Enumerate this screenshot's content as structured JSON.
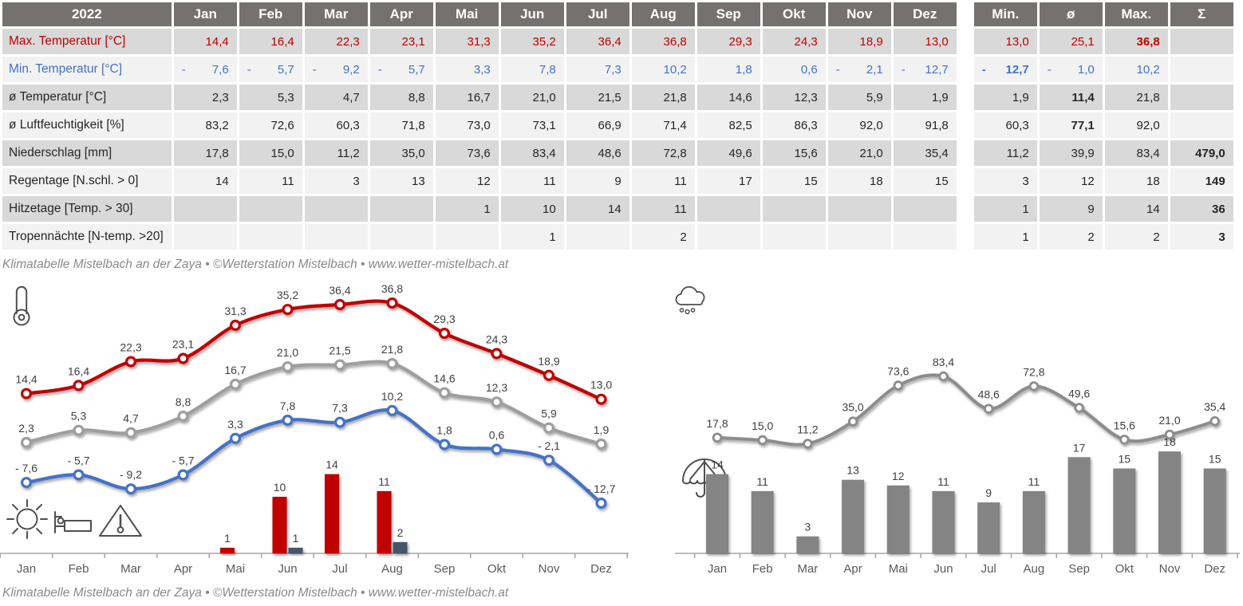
{
  "colors": {
    "header_bg": "#767171",
    "row_dark": "#d9d9d9",
    "row_light": "#f2f2f2",
    "max_red": "#C00000",
    "min_blue": "#4472C4",
    "avg_gray": "#9E9E9E",
    "precip_gray": "#8C8C8C",
    "bar_gray": "#848484",
    "tropen_slate": "#44546A",
    "axis": "#A6A6A6",
    "point_label": "#404040",
    "month_label": "#595959",
    "caption_gray": "#8a8a8a"
  },
  "table": {
    "year": "2022",
    "months": [
      "Jan",
      "Feb",
      "Mar",
      "Apr",
      "Mai",
      "Jun",
      "Jul",
      "Aug",
      "Sep",
      "Okt",
      "Nov",
      "Dez"
    ],
    "summary_headers": [
      "Min.",
      "ø",
      "Max.",
      "Σ"
    ],
    "rows": [
      {
        "label": "Max. Temperatur [°C]",
        "color": "#C00000",
        "values": [
          "14,4",
          "16,4",
          "22,3",
          "23,1",
          "31,3",
          "35,2",
          "36,4",
          "36,8",
          "29,3",
          "24,3",
          "18,9",
          "13,0"
        ],
        "summary": [
          "13,0",
          "25,1",
          "36,8",
          ""
        ],
        "summary_bold": [
          2
        ]
      },
      {
        "label": "Min. Temperatur [°C]",
        "color": "#4472C4",
        "values": [
          "- 7,6",
          "- 5,7",
          "- 9,2",
          "- 5,7",
          "3,3",
          "7,8",
          "7,3",
          "10,2",
          "1,8",
          "0,6",
          "- 2,1",
          "- 12,7"
        ],
        "summary": [
          "- 12,7",
          "- 1,0",
          "10,2",
          ""
        ],
        "summary_bold": [
          0
        ]
      },
      {
        "label": "ø Temperatur [°C]",
        "color": "#262626",
        "values": [
          "2,3",
          "5,3",
          "4,7",
          "8,8",
          "16,7",
          "21,0",
          "21,5",
          "21,8",
          "14,6",
          "12,3",
          "5,9",
          "1,9"
        ],
        "summary": [
          "1,9",
          "11,4",
          "21,8",
          ""
        ],
        "summary_bold": [
          1
        ]
      },
      {
        "label": "ø Luftfeuchtigkeit [%]",
        "color": "#262626",
        "values": [
          "83,2",
          "72,6",
          "60,3",
          "71,8",
          "73,0",
          "73,1",
          "66,9",
          "71,4",
          "82,5",
          "86,3",
          "92,0",
          "91,8"
        ],
        "summary": [
          "60,3",
          "77,1",
          "92,0",
          ""
        ],
        "summary_bold": [
          1
        ]
      },
      {
        "label": "Niederschlag [mm]",
        "color": "#262626",
        "values": [
          "17,8",
          "15,0",
          "11,2",
          "35,0",
          "73,6",
          "83,4",
          "48,6",
          "72,8",
          "49,6",
          "15,6",
          "21,0",
          "35,4"
        ],
        "summary": [
          "11,2",
          "39,9",
          "83,4",
          "479,0"
        ],
        "summary_bold": [
          3
        ]
      },
      {
        "label": "Regentage [N.schl. > 0]",
        "color": "#262626",
        "values": [
          "14",
          "11",
          "3",
          "13",
          "12",
          "11",
          "9",
          "11",
          "17",
          "15",
          "18",
          "15"
        ],
        "summary": [
          "3",
          "12",
          "18",
          "149"
        ],
        "summary_bold": [
          3
        ]
      },
      {
        "label": "Hitzetage [Temp. > 30]",
        "color": "#262626",
        "values": [
          "",
          "",
          "",
          "",
          "1",
          "10",
          "14",
          "11",
          "",
          "",
          "",
          ""
        ],
        "summary": [
          "1",
          "9",
          "14",
          "36"
        ],
        "summary_bold": [
          3
        ]
      },
      {
        "label": "Tropennächte [N-temp. >20]",
        "color": "#262626",
        "values": [
          "",
          "",
          "",
          "",
          "",
          "1",
          "",
          "2",
          "",
          "",
          "",
          ""
        ],
        "summary": [
          "1",
          "2",
          "2",
          "3"
        ],
        "summary_bold": [
          3
        ]
      }
    ]
  },
  "caption": "Klimatabelle Mistelbach an der Zaya  •  ©Wetterstation Mistelbach  •  www.wetter-mistelbach.at",
  "chart_data": [
    {
      "type": "combo",
      "name": "temperature-chart",
      "categories": [
        "Jan",
        "Feb",
        "Mar",
        "Apr",
        "Mai",
        "Jun",
        "Jul",
        "Aug",
        "Sep",
        "Okt",
        "Nov",
        "Dez"
      ],
      "series": [
        {
          "name": "Max. Temperatur [°C]",
          "kind": "line",
          "color": "#C00000",
          "decimals": 1,
          "values": [
            14.4,
            16.4,
            22.3,
            23.1,
            31.3,
            35.2,
            36.4,
            36.8,
            29.3,
            24.3,
            18.9,
            13.0
          ]
        },
        {
          "name": "ø Temperatur [°C]",
          "kind": "line",
          "color": "#9E9E9E",
          "decimals": 1,
          "values": [
            2.3,
            5.3,
            4.7,
            8.8,
            16.7,
            21.0,
            21.5,
            21.8,
            14.6,
            12.3,
            5.9,
            1.9
          ]
        },
        {
          "name": "Min. Temperatur [°C]",
          "kind": "line",
          "color": "#4472C4",
          "decimals": 1,
          "values": [
            -7.6,
            -5.7,
            -9.2,
            -5.7,
            3.3,
            7.8,
            7.3,
            10.2,
            1.8,
            0.6,
            -2.1,
            -12.7
          ]
        },
        {
          "name": "Hitzetage [Temp. > 30]",
          "kind": "bar",
          "color": "#C00000",
          "decimals": 0,
          "values": [
            null,
            null,
            null,
            null,
            1,
            10,
            14,
            11,
            null,
            null,
            null,
            null
          ]
        },
        {
          "name": "Tropennächte [N-temp. >20]",
          "kind": "bar",
          "color": "#44546A",
          "decimals": 0,
          "values": [
            null,
            null,
            null,
            null,
            null,
            1,
            null,
            2,
            null,
            null,
            null,
            null
          ]
        }
      ],
      "line_axis_range": [
        -25,
        41
      ],
      "bar_axis_range": [
        0,
        47
      ],
      "grid": false,
      "legend": "none",
      "icons": [
        "thermometer-icon",
        "sun-icon",
        "bed-icon",
        "heat-warning-icon"
      ]
    },
    {
      "type": "combo",
      "name": "precipitation-chart",
      "categories": [
        "Jan",
        "Feb",
        "Mar",
        "Apr",
        "Mai",
        "Jun",
        "Jul",
        "Aug",
        "Sep",
        "Okt",
        "Nov",
        "Dez"
      ],
      "series": [
        {
          "name": "Niederschlag [mm]",
          "kind": "line",
          "color": "#8C8C8C",
          "decimals": 1,
          "values": [
            17.8,
            15.0,
            11.2,
            35.0,
            73.6,
            83.4,
            48.6,
            72.8,
            49.6,
            15.6,
            21.0,
            35.4
          ]
        },
        {
          "name": "Regentage [N.schl. > 0]",
          "kind": "bar",
          "color": "#848484",
          "decimals": 0,
          "values": [
            14,
            11,
            3,
            13,
            12,
            11,
            9,
            11,
            17,
            15,
            18,
            15
          ]
        }
      ],
      "line_axis_range": [
        -32,
        190
      ],
      "bar_axis_range": [
        0,
        47
      ],
      "grid": false,
      "legend": "none",
      "icons": [
        "rain-cloud-icon",
        "umbrella-icon"
      ]
    }
  ]
}
